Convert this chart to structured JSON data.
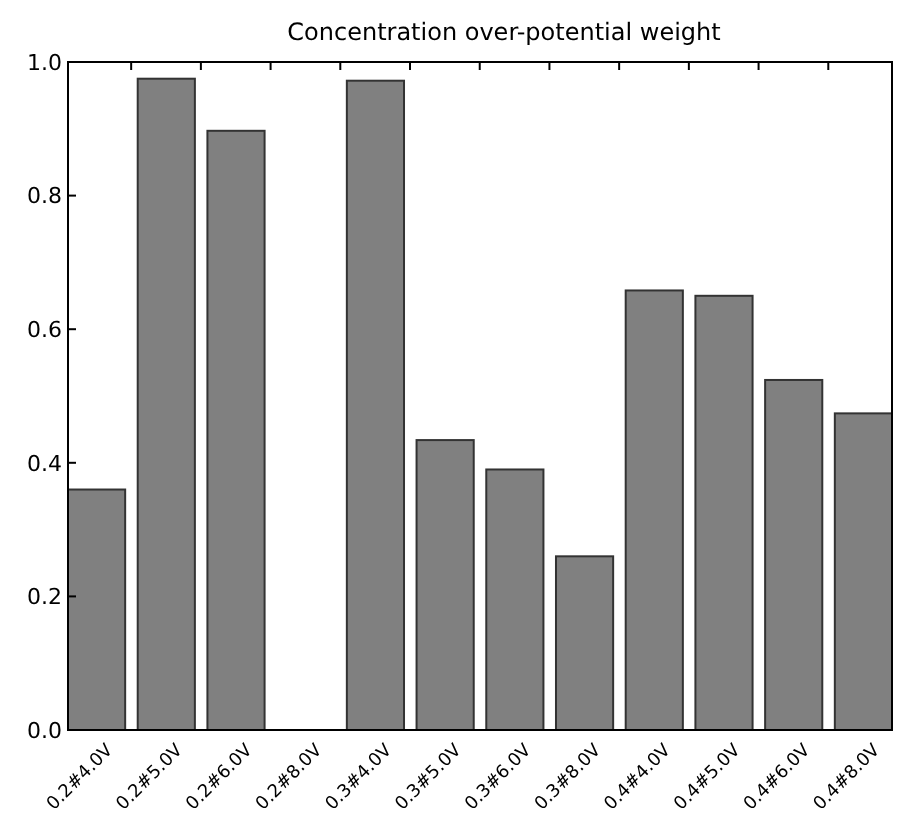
{
  "chart_data": {
    "type": "bar",
    "title": "Concentration over-potential weight",
    "categories": [
      "0.2#4.0V",
      "0.2#5.0V",
      "0.2#6.0V",
      "0.2#8.0V",
      "0.3#4.0V",
      "0.3#5.0V",
      "0.3#6.0V",
      "0.3#8.0V",
      "0.4#4.0V",
      "0.4#5.0V",
      "0.4#6.0V",
      "0.4#8.0V"
    ],
    "values": [
      0.36,
      0.975,
      0.897,
      0,
      0.972,
      0.434,
      0.39,
      0.26,
      0.658,
      0.65,
      0.524,
      0.474
    ],
    "color": "#808080",
    "ylim": [
      0,
      1
    ],
    "yticks": [
      {
        "value": 0,
        "label": "0.0"
      },
      {
        "value": 0.2,
        "label": "0.2"
      },
      {
        "value": 0.4,
        "label": "0.4"
      },
      {
        "value": 0.6,
        "label": "0.6"
      },
      {
        "value": 0.8,
        "label": "0.8"
      },
      {
        "value": 1,
        "label": "1.0"
      }
    ],
    "grid": false
  }
}
